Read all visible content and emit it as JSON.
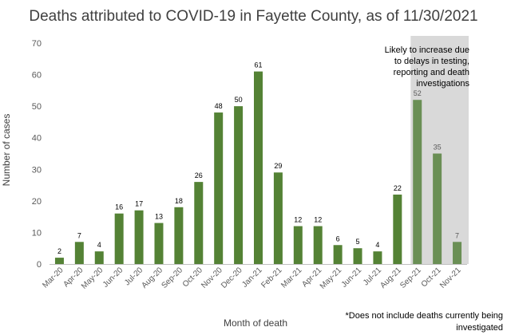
{
  "chart_data": {
    "type": "bar",
    "title": "Deaths attributed to COVID-19 in Fayette County, as of 11/30/2021",
    "xlabel": "Month of death",
    "ylabel": "Number of cases",
    "ylim": [
      0,
      70
    ],
    "yticks": [
      0,
      10,
      20,
      30,
      40,
      50,
      60,
      70
    ],
    "grid": false,
    "categories": [
      "Mar-20",
      "Apr-20",
      "May-20",
      "Jun-20",
      "Jul-20",
      "Aug-20",
      "Sep-20",
      "Oct-20",
      "Nov-20",
      "Dec-20",
      "Jan-21",
      "Feb-21",
      "Mar-21",
      "Apr-21",
      "May-21",
      "Jun-21",
      "Jul-21",
      "Aug-21",
      "Sep-21",
      "Oct-21",
      "Nov-21"
    ],
    "values": [
      2,
      7,
      4,
      16,
      17,
      13,
      18,
      26,
      48,
      50,
      61,
      29,
      12,
      12,
      6,
      5,
      4,
      22,
      52,
      35,
      7
    ],
    "bar_color": "#548235",
    "shaded_categories": [
      "Sep-21",
      "Oct-21",
      "Nov-21"
    ],
    "shaded_bar_color": "#6a8f55",
    "shade_color": "#d9d9d9",
    "shade_annotation": "Likely to increase due to delays in testing, reporting and death investigations",
    "footnote": "*Does not include deaths currently being investigated"
  }
}
